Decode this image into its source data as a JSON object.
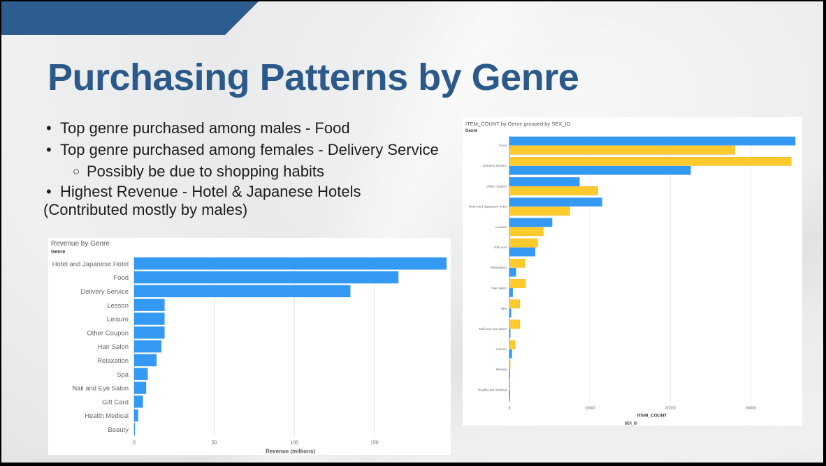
{
  "slide": {
    "title": "Purchasing Patterns by Genre",
    "bullets": [
      {
        "text": "Top genre purchased among males - Food"
      },
      {
        "text": "Top genre purchased among females - Delivery Service"
      },
      {
        "text": "Possibly be due to shopping habits"
      },
      {
        "text": "Highest Revenue - Hotel & Japanese Hotels",
        "continuation": "(Contributed mostly by males)"
      }
    ]
  },
  "colors": {
    "banner": "#2d5c8f",
    "title": "#2b5a8a",
    "bar_blue": "#3399f3",
    "bar_yellow": "#ffca2c"
  },
  "chart_data": [
    {
      "type": "bar",
      "orientation": "horizontal",
      "title": "Revenue by Genre",
      "category_axis_label": "Genre",
      "xlabel": "Revenue (millions)",
      "xlim": [
        0,
        195
      ],
      "xticks": [
        0,
        50,
        100,
        150
      ],
      "categories": [
        "Hotel and Japanese Hotel",
        "Food",
        "Delivery Service",
        "Lesson",
        "Leisure",
        "Other Coupon",
        "Hair Salon",
        "Relaxation",
        "Spa",
        "Nail and Eye Salon",
        "Gift Card",
        "Health Medical",
        "Beauty"
      ],
      "values": [
        195,
        165,
        135,
        19,
        19,
        19,
        17,
        14,
        8.5,
        7.5,
        5.5,
        2.5,
        0.5
      ],
      "grid": true
    },
    {
      "type": "bar",
      "orientation": "horizontal",
      "title": "ITEM_COUNT by Genre grouped by SEX_ID",
      "category_axis_label": "Genre",
      "xlabel": "ITEM_COUNT",
      "xlim": [
        0,
        35500
      ],
      "xticks": [
        0,
        10000,
        20000,
        30000
      ],
      "categories": [
        "Food",
        "Delivery service",
        "Other coupon",
        "Hotel and Japanese hotel",
        "Leisure",
        "Gift card",
        "Relaxation",
        "Hair salon",
        "Spa",
        "Nail and eye salon",
        "Lesson",
        "Beauty",
        "Health and medical"
      ],
      "legend_title": "SEX_ID",
      "legend_position": "bottom",
      "series": [
        {
          "name": "F",
          "values": [
            28000,
            35000,
            11000,
            7500,
            4200,
            3500,
            1900,
            2000,
            1300,
            1300,
            700,
            100,
            80
          ]
        },
        {
          "name": "M",
          "values": [
            35500,
            22500,
            8700,
            11500,
            5300,
            3200,
            800,
            400,
            200,
            100,
            300,
            30,
            20
          ]
        }
      ],
      "series_order_per_category": {
        "first_on_top": [
          "M",
          "F",
          "M",
          "M",
          "M",
          "F",
          "F",
          "F",
          "F",
          "F",
          "F",
          "F",
          "F"
        ]
      },
      "grid": true
    }
  ]
}
